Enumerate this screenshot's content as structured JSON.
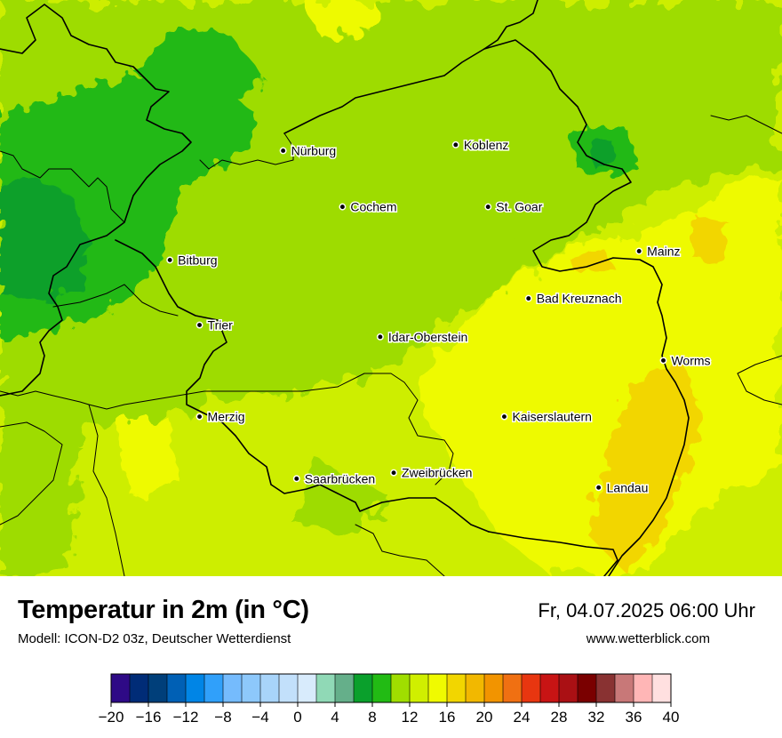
{
  "map": {
    "cities": [
      {
        "name": "Nürburg",
        "lon": 6.95,
        "lat": 50.34
      },
      {
        "name": "Koblenz",
        "lon": 7.59,
        "lat": 50.36
      },
      {
        "name": "Cochem",
        "lon": 7.17,
        "lat": 50.15
      },
      {
        "name": "St. Goar",
        "lon": 7.71,
        "lat": 50.15
      },
      {
        "name": "Bitburg",
        "lon": 6.53,
        "lat": 49.97
      },
      {
        "name": "Mainz",
        "lon": 8.27,
        "lat": 50.0
      },
      {
        "name": "Bad Kreuznach",
        "lon": 7.86,
        "lat": 49.84
      },
      {
        "name": "Trier",
        "lon": 6.64,
        "lat": 49.75
      },
      {
        "name": "Idar-Oberstein",
        "lon": 7.31,
        "lat": 49.71
      },
      {
        "name": "Worms",
        "lon": 8.36,
        "lat": 49.63
      },
      {
        "name": "Merzig",
        "lon": 6.64,
        "lat": 49.44
      },
      {
        "name": "Kaiserslautern",
        "lon": 7.77,
        "lat": 49.44
      },
      {
        "name": "Saarbrücken",
        "lon": 7.0,
        "lat": 49.23
      },
      {
        "name": "Zweibrücken",
        "lon": 7.36,
        "lat": 49.25
      },
      {
        "name": "Landau",
        "lon": 8.12,
        "lat": 49.2
      }
    ]
  },
  "footer": {
    "title": "Temperatur in 2m (in °C)",
    "subtitle": "Modell: ICON-D2 03z, Deutscher Wetterdienst",
    "datetime": "Fr, 04.07.2025 06:00 Uhr",
    "site": "www.wetterblick.com"
  },
  "legend": {
    "colors": [
      "#2e0a86",
      "#002c77",
      "#003f7a",
      "#0060b5",
      "#0085e6",
      "#30a0fa",
      "#75bbfd",
      "#8dc8fb",
      "#a8d4fa",
      "#c2e0fb",
      "#d8ebfc",
      "#90d9b6",
      "#65af8a",
      "#0aa02c",
      "#22bb14",
      "#a0de00",
      "#d0ef00",
      "#f0fa00",
      "#f2d600",
      "#f2b800",
      "#f29400",
      "#f07012",
      "#e83610",
      "#c81414",
      "#aa1014",
      "#7a0000",
      "#893232",
      "#c87878",
      "#ffb6b6",
      "#ffe0e0"
    ],
    "ticks": [
      "−20",
      "−16",
      "−12",
      "−8",
      "−4",
      "0",
      "4",
      "8",
      "12",
      "16",
      "20",
      "24",
      "28",
      "32",
      "36",
      "40"
    ],
    "min": -20,
    "max": 40
  }
}
